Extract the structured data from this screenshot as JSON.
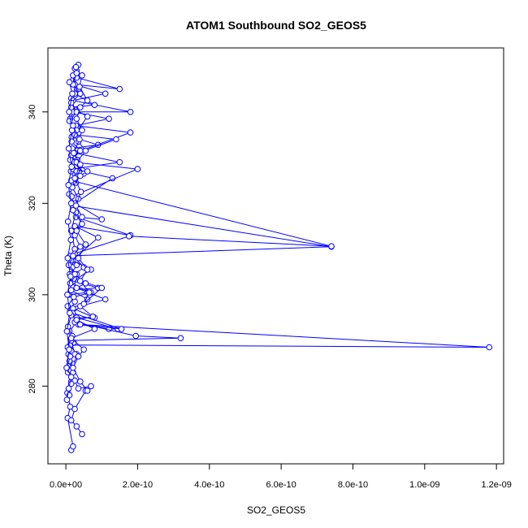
{
  "chart_data": {
    "type": "line",
    "title": "ATOM1 Southbound SO2_GEOS5",
    "xlabel": "SO2_GEOS5",
    "ylabel": "Theta (K)",
    "xlim": [
      -5e-11,
      1.22e-09
    ],
    "ylim": [
      263,
      354
    ],
    "x_ticks": [
      {
        "value": 0,
        "label": "0.0e+00"
      },
      {
        "value": 2e-10,
        "label": "2.0e-10"
      },
      {
        "value": 4e-10,
        "label": "4.0e-10"
      },
      {
        "value": 6e-10,
        "label": "6.0e-10"
      },
      {
        "value": 8e-10,
        "label": "8.0e-10"
      },
      {
        "value": 1e-09,
        "label": "1.0e-09"
      },
      {
        "value": 1.2e-09,
        "label": "1.2e-09"
      }
    ],
    "y_ticks": [
      {
        "value": 280,
        "label": "280"
      },
      {
        "value": 300,
        "label": "300"
      },
      {
        "value": 320,
        "label": "320"
      },
      {
        "value": 340,
        "label": "340"
      }
    ],
    "grid": false,
    "legend": "none",
    "color": "#0000ff",
    "series": [
      {
        "points": [
          [
            1.5e-11,
            266.0
          ],
          [
            2e-11,
            266.8
          ],
          [
            5e-12,
            273.0
          ],
          [
            1.2e-11,
            275.5
          ],
          [
            4e-12,
            278.5
          ],
          [
            1.5e-11,
            281.0
          ],
          [
            6e-12,
            283.0
          ],
          [
            1.8e-11,
            285.0
          ],
          [
            7e-12,
            287.0
          ],
          [
            2.2e-11,
            289.5
          ],
          [
            1e-11,
            292.0
          ],
          [
            3e-11,
            294.0
          ],
          [
            1.2e-11,
            296.5
          ],
          [
            2.5e-11,
            298.5
          ],
          [
            8e-12,
            300.0
          ],
          [
            6e-11,
            300.5
          ],
          [
            2e-11,
            302.0
          ],
          [
            1.1e-11,
            304.5
          ],
          [
            3e-11,
            306.5
          ],
          [
            1.2e-11,
            308.5
          ],
          [
            7.4e-10,
            310.5
          ],
          [
            1.9e-11,
            319.5
          ],
          [
            9e-12,
            322.0
          ],
          [
            2.8e-11,
            324.5
          ],
          [
            1.4e-11,
            327.0
          ],
          [
            3.2e-11,
            329.5
          ],
          [
            1.8e-11,
            332.0
          ],
          [
            9e-11,
            332.8
          ],
          [
            1.6e-11,
            334.5
          ],
          [
            2.2e-11,
            336.5
          ],
          [
            1.2e-11,
            338.5
          ],
          [
            2.5e-11,
            340.5
          ],
          [
            1.5e-11,
            343.0
          ],
          [
            3.5e-11,
            345.0
          ],
          [
            2e-11,
            347.0
          ],
          [
            3e-11,
            349.0
          ],
          [
            3.5e-11,
            350.3
          ]
        ]
      },
      {
        "points": [
          [
            4.5e-11,
            269.5
          ],
          [
            3e-11,
            271.2
          ],
          [
            1.5e-11,
            272.5
          ],
          [
            2.5e-11,
            275.0
          ],
          [
            5.5e-11,
            279.0
          ],
          [
            7e-11,
            280.0
          ],
          [
            3.5e-11,
            279.5
          ],
          [
            2.5e-11,
            281.2
          ],
          [
            1.2e-11,
            283.5
          ],
          [
            2e-11,
            286.0
          ],
          [
            3e-11,
            287.0
          ],
          [
            1.2e-11,
            289.0
          ],
          [
            1.18e-09,
            288.5
          ],
          [
            3.5e-11,
            293.5
          ],
          [
            1.2e-10,
            292.5
          ],
          [
            1.45e-10,
            292.5
          ],
          [
            3e-11,
            295.0
          ],
          [
            8e-11,
            295.0
          ],
          [
            2e-11,
            297.0
          ],
          [
            6e-11,
            299.0
          ],
          [
            1.5e-11,
            301.0
          ],
          [
            9e-11,
            301.5
          ],
          [
            2e-11,
            303.0
          ],
          [
            7e-11,
            305.5
          ],
          [
            1.8e-11,
            307.5
          ],
          [
            9e-11,
            312.5
          ],
          [
            2.5e-11,
            315.0
          ],
          [
            1.8e-10,
            313.0
          ],
          [
            2.8e-11,
            317.0
          ],
          [
            1e-10,
            316.5
          ],
          [
            2.5e-11,
            320.0
          ],
          [
            1.3e-10,
            325.5
          ],
          [
            2e-11,
            327.5
          ],
          [
            1.5e-10,
            329.0
          ],
          [
            2.5e-11,
            331.0
          ],
          [
            1.8e-10,
            335.5
          ],
          [
            2.8e-11,
            337.0
          ],
          [
            1.2e-10,
            338.5
          ],
          [
            2e-11,
            340.0
          ],
          [
            1.8e-10,
            340.0
          ],
          [
            2e-11,
            342.5
          ],
          [
            1.1e-10,
            344.0
          ],
          [
            2.5e-11,
            346.0
          ],
          [
            1.5e-10,
            345.0
          ],
          [
            3e-11,
            347.5
          ],
          [
            2.5e-11,
            349.5
          ]
        ]
      },
      {
        "points": [
          [
            1e-11,
            278.0
          ],
          [
            1.5e-11,
            280.5
          ],
          [
            2e-11,
            283.0
          ],
          [
            1e-11,
            285.5
          ],
          [
            2.5e-11,
            287.0
          ],
          [
            1.5e-11,
            290.0
          ],
          [
            3.2e-10,
            290.5
          ],
          [
            1.95e-10,
            291.0
          ],
          [
            2.5e-11,
            294.0
          ],
          [
            4e-11,
            293.5
          ],
          [
            1.55e-10,
            292.5
          ],
          [
            1.9e-11,
            296.0
          ],
          [
            1e-10,
            301.5
          ],
          [
            2.2e-11,
            303.5
          ],
          [
            1.8e-11,
            306.0
          ],
          [
            2.5e-11,
            310.0
          ],
          [
            1.5e-11,
            314.0
          ],
          [
            2.8e-11,
            318.0
          ],
          [
            1.6e-11,
            321.5
          ],
          [
            2e-10,
            327.5
          ],
          [
            2.2e-11,
            329.0
          ],
          [
            5e-11,
            326.5
          ],
          [
            1.5e-11,
            330.5
          ],
          [
            1.4e-10,
            334.0
          ],
          [
            2.5e-11,
            335.0
          ],
          [
            6e-11,
            339.0
          ],
          [
            1.5e-11,
            341.0
          ],
          [
            8e-11,
            341.5
          ],
          [
            2.5e-11,
            344.0
          ],
          [
            2e-11,
            348.0
          ]
        ]
      },
      {
        "points": [
          [
            3e-12,
            277.0
          ],
          [
            8e-12,
            279.5
          ],
          [
            1.5e-11,
            282.0
          ],
          [
            3e-12,
            284.0
          ],
          [
            1.2e-11,
            286.5
          ],
          [
            5e-12,
            288.5
          ],
          [
            1.8e-11,
            291.0
          ],
          [
            6e-12,
            293.0
          ],
          [
            1.5e-11,
            295.5
          ],
          [
            5e-12,
            297.5
          ],
          [
            2.2e-11,
            299.5
          ],
          [
            7e-11,
            300.5
          ],
          [
            1.2e-11,
            302.5
          ],
          [
            3e-11,
            304.5
          ],
          [
            8e-12,
            306.5
          ],
          [
            2.5e-11,
            309.0
          ],
          [
            1.76e-10,
            312.8
          ],
          [
            7.4e-10,
            310.6
          ],
          [
            1.5e-11,
            325.0
          ],
          [
            3e-11,
            327.0
          ],
          [
            1.2e-11,
            329.5
          ],
          [
            4e-11,
            331.5
          ],
          [
            1.6e-11,
            333.5
          ],
          [
            3e-11,
            336.0
          ],
          [
            1e-11,
            338.0
          ],
          [
            3e-11,
            340.0
          ],
          [
            1.5e-11,
            342.0
          ],
          [
            4e-11,
            344.0
          ],
          [
            2e-11,
            346.0
          ],
          [
            3e-11,
            348.5
          ],
          [
            2.8e-11,
            349.8
          ]
        ]
      },
      {
        "points": [
          [
            6e-11,
            279.0
          ],
          [
            4e-11,
            281.0
          ],
          [
            2e-11,
            284.0
          ],
          [
            3.5e-11,
            286.5
          ],
          [
            5e-11,
            288.0
          ],
          [
            1.5e-11,
            290.5
          ],
          [
            8e-11,
            292.5
          ],
          [
            3e-11,
            294.5
          ],
          [
            7.5e-11,
            295.2
          ],
          [
            4e-11,
            297.5
          ],
          [
            1.1e-10,
            299.0
          ],
          [
            3e-11,
            301.5
          ],
          [
            5.5e-11,
            302.5
          ],
          [
            2.5e-11,
            304.5
          ],
          [
            5e-11,
            306.0
          ],
          [
            2e-11,
            308.5
          ],
          [
            4e-11,
            310.5
          ],
          [
            2.5e-11,
            313.0
          ],
          [
            4.5e-11,
            315.5
          ],
          [
            2e-11,
            318.5
          ],
          [
            3.5e-11,
            321.0
          ],
          [
            1.8e-11,
            323.5
          ],
          [
            4e-11,
            326.0
          ],
          [
            6e-11,
            327.0
          ],
          [
            3e-11,
            329.0
          ],
          [
            5.5e-11,
            331.5
          ],
          [
            3.5e-11,
            333.5
          ],
          [
            4.5e-11,
            336.0
          ],
          [
            3e-11,
            338.5
          ],
          [
            4e-11,
            341.0
          ],
          [
            6e-11,
            342.5
          ],
          [
            3.8e-11,
            345.5
          ],
          [
            4.5e-11,
            348.0
          ]
        ]
      },
      {
        "points": [
          [
            2e-12,
            284.0
          ],
          [
            9e-12,
            288.0
          ],
          [
            3e-12,
            292.0
          ],
          [
            1.1e-11,
            296.0
          ],
          [
            4e-12,
            300.0
          ],
          [
            1.3e-11,
            304.0
          ],
          [
            5e-12,
            308.0
          ],
          [
            1.4e-11,
            312.0
          ],
          [
            6e-12,
            316.0
          ],
          [
            1.5e-11,
            320.0
          ],
          [
            7e-12,
            324.0
          ],
          [
            1.6e-11,
            328.0
          ],
          [
            8e-12,
            332.0
          ],
          [
            1.7e-11,
            336.0
          ],
          [
            9e-12,
            340.0
          ],
          [
            1.8e-11,
            344.0
          ],
          [
            1e-11,
            346.5
          ]
        ]
      },
      {
        "points": [
          [
            5e-11,
            298.0
          ],
          [
            6.5e-11,
            300.5
          ],
          [
            4e-11,
            303.0
          ],
          [
            6e-11,
            305.5
          ],
          [
            3.5e-11,
            308.0
          ],
          [
            5.5e-11,
            311.0
          ],
          [
            3e-11,
            314.0
          ],
          [
            4.5e-11,
            317.0
          ],
          [
            2.8e-11,
            319.5
          ],
          [
            4.2e-11,
            322.5
          ],
          [
            2.5e-11,
            325.5
          ],
          [
            4e-11,
            328.5
          ],
          [
            2.2e-11,
            331.0
          ],
          [
            3.8e-11,
            334.0
          ],
          [
            2e-11,
            337.0
          ]
        ]
      }
    ]
  }
}
